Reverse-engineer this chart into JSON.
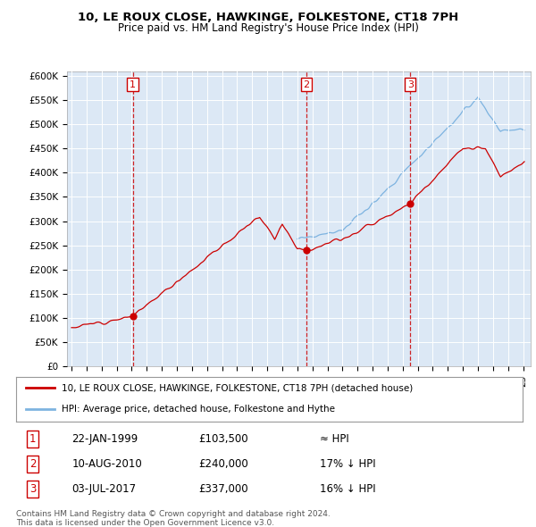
{
  "title": "10, LE ROUX CLOSE, HAWKINGE, FOLKESTONE, CT18 7PH",
  "subtitle": "Price paid vs. HM Land Registry's House Price Index (HPI)",
  "plot_bg_color": "#dce8f5",
  "yticks": [
    0,
    50000,
    100000,
    150000,
    200000,
    250000,
    300000,
    350000,
    400000,
    450000,
    500000,
    550000,
    600000
  ],
  "ytick_labels": [
    "£0",
    "£50K",
    "£100K",
    "£150K",
    "£200K",
    "£250K",
    "£300K",
    "£350K",
    "£400K",
    "£450K",
    "£500K",
    "£550K",
    "£600K"
  ],
  "xmin": 1994.7,
  "xmax": 2025.5,
  "ymin": 0,
  "ymax": 610000,
  "sale1_date": 1999.07,
  "sale1_price": 103500,
  "sale1_label": "1",
  "sale1_text": "22-JAN-1999",
  "sale1_price_text": "£103,500",
  "sale1_rel": "≈ HPI",
  "sale2_date": 2010.61,
  "sale2_price": 240000,
  "sale2_label": "2",
  "sale2_text": "10-AUG-2010",
  "sale2_price_text": "£240,000",
  "sale2_rel": "17% ↓ HPI",
  "sale3_date": 2017.5,
  "sale3_price": 337000,
  "sale3_label": "3",
  "sale3_text": "03-JUL-2017",
  "sale3_price_text": "£337,000",
  "sale3_rel": "16% ↓ HPI",
  "line1_color": "#cc0000",
  "line2_color": "#7db3e0",
  "legend_line1": "10, LE ROUX CLOSE, HAWKINGE, FOLKESTONE, CT18 7PH (detached house)",
  "legend_line2": "HPI: Average price, detached house, Folkestone and Hythe",
  "footer1": "Contains HM Land Registry data © Crown copyright and database right 2024.",
  "footer2": "This data is licensed under the Open Government Licence v3.0."
}
